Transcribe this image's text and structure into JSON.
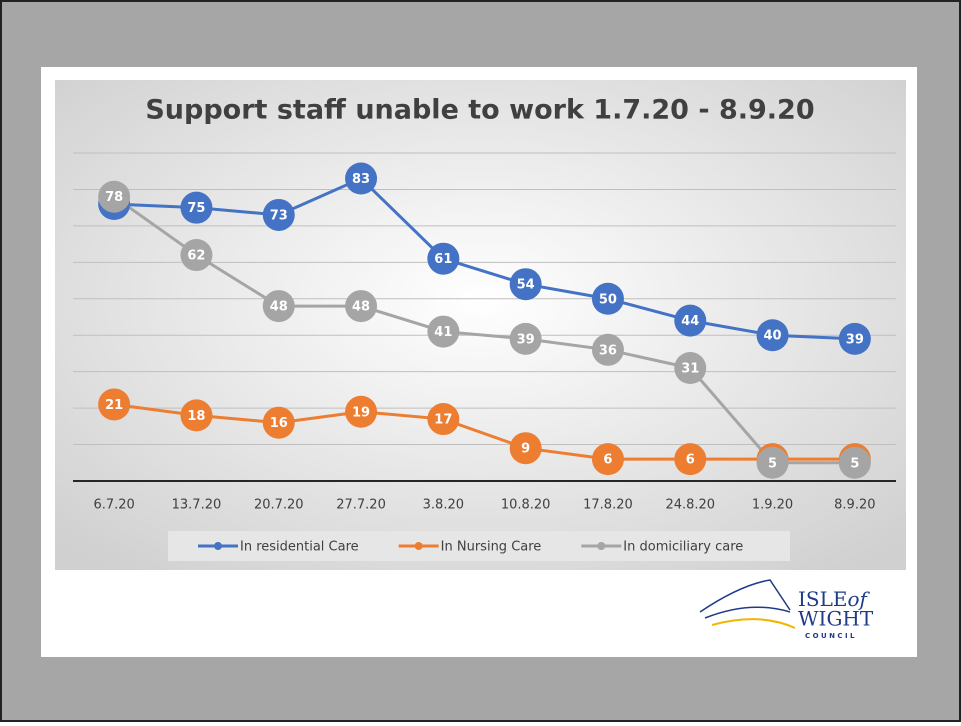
{
  "chart_data": {
    "type": "line",
    "title": "Support staff unable to work 1.7.20 - 8.9.20",
    "categories": [
      "6.7.20",
      "13.7.20",
      "20.7.20",
      "27.7.20",
      "3.8.20",
      "10.8.20",
      "17.8.20",
      "24.8.20",
      "1.9.20",
      "8.9.20"
    ],
    "series": [
      {
        "name": "In residential Care",
        "color": "#4472c4",
        "values": [
          76,
          75,
          73,
          83,
          61,
          54,
          50,
          44,
          40,
          39
        ]
      },
      {
        "name": "In Nursing Care",
        "color": "#ed7d31",
        "values": [
          21,
          18,
          16,
          19,
          17,
          9,
          6,
          6,
          6,
          6
        ]
      },
      {
        "name": "In domiciliary care",
        "color": "#a5a5a5",
        "values": [
          78,
          62,
          48,
          48,
          41,
          39,
          36,
          31,
          5,
          5
        ]
      }
    ],
    "ylim": [
      0,
      90
    ],
    "yticks": [
      0,
      10,
      20,
      30,
      40,
      50,
      60,
      70,
      80,
      90
    ],
    "grid": true,
    "legend": "bottom"
  },
  "logo": {
    "line1": "ISLE",
    "line1b": "of",
    "line2": "WIGHT",
    "line3": "C O U N C I L"
  }
}
